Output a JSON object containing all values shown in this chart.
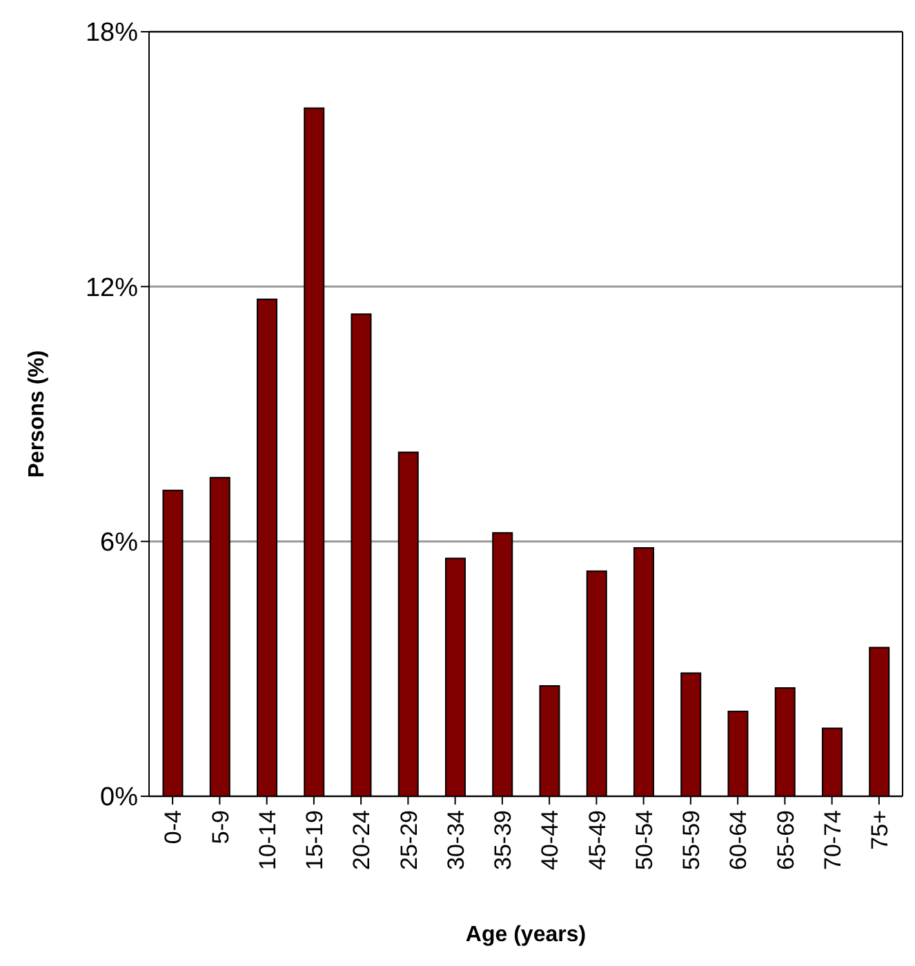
{
  "chart_data": {
    "type": "bar",
    "xlabel": "Age (years)",
    "ylabel": "Persons (%)",
    "categories": [
      "0-4",
      "5-9",
      "10-14",
      "15-19",
      "20-24",
      "25-29",
      "30-34",
      "35-39",
      "40-44",
      "45-49",
      "50-54",
      "55-59",
      "60-64",
      "65-69",
      "70-74",
      "75+"
    ],
    "values": [
      7.2,
      7.5,
      11.7,
      16.2,
      11.35,
      8.1,
      5.6,
      6.2,
      2.6,
      5.3,
      5.85,
      2.9,
      2.0,
      2.55,
      1.6,
      3.5
    ],
    "color": "#800000",
    "ylim": [
      0,
      18
    ],
    "yticks": [
      {
        "value": 0,
        "label": "0%"
      },
      {
        "value": 6,
        "label": "6%"
      },
      {
        "value": 12,
        "label": "12%"
      },
      {
        "value": 18,
        "label": "18%"
      }
    ],
    "grid": "y"
  }
}
